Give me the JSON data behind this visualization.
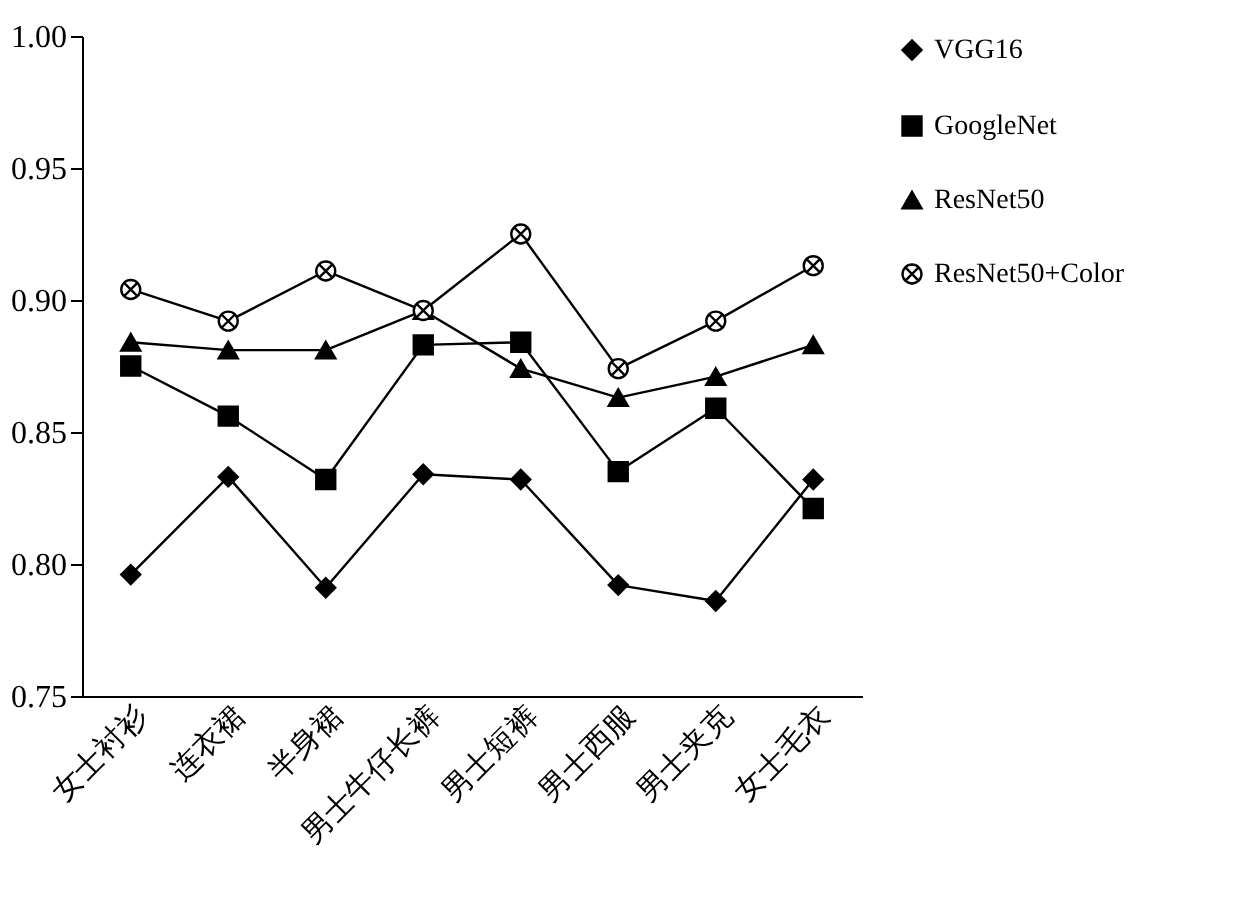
{
  "chart_data": {
    "type": "line",
    "categories": [
      "女士衬衫",
      "连衣裙",
      "半身裙",
      "男士牛仔长裤",
      "男士短裤",
      "男士西服",
      "男士夹克",
      "女士毛衣"
    ],
    "ylim": [
      0.75,
      1.0
    ],
    "yticks": [
      {
        "value": 0.75,
        "label": "0.75"
      },
      {
        "value": 0.8,
        "label": "0.80"
      },
      {
        "value": 0.85,
        "label": "0.85"
      },
      {
        "value": 0.9,
        "label": "0.90"
      },
      {
        "value": 0.95,
        "label": "0.95"
      },
      {
        "value": 1.0,
        "label": "1.00"
      }
    ],
    "grid": false,
    "legend": "right",
    "line_style": "solid",
    "series": [
      {
        "name": "VGG16",
        "color": "#000000",
        "marker": "diamond",
        "values": [
          0.796,
          0.833,
          0.791,
          0.834,
          0.832,
          0.792,
          0.786,
          0.832
        ]
      },
      {
        "name": "GoogleNet",
        "color": "#000000",
        "marker": "square",
        "values": [
          0.875,
          0.856,
          0.832,
          0.883,
          0.884,
          0.835,
          0.859,
          0.821
        ]
      },
      {
        "name": "ResNet50",
        "color": "#000000",
        "marker": "triangle",
        "values": [
          0.884,
          0.881,
          0.881,
          0.896,
          0.874,
          0.863,
          0.871,
          0.883
        ]
      },
      {
        "name": "ResNet50+Color",
        "color": "#000000",
        "marker": "cross",
        "values": [
          0.904,
          0.892,
          0.911,
          0.896,
          0.925,
          0.874,
          0.892,
          0.913
        ]
      }
    ]
  }
}
